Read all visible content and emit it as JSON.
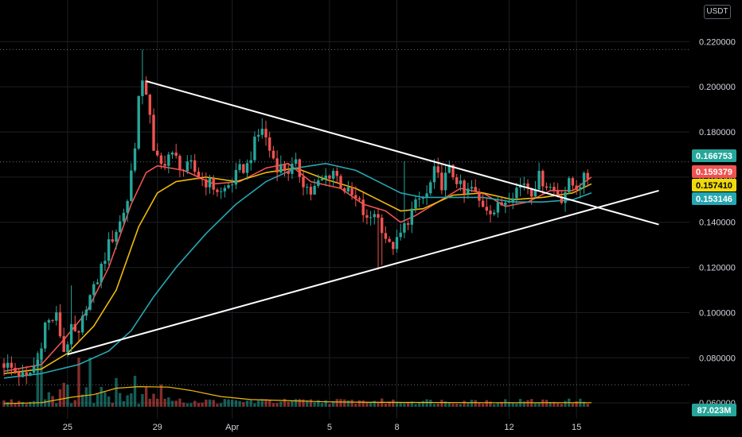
{
  "currency_badge": "USDT",
  "colors": {
    "background": "#000000",
    "up": "#26a69a",
    "down": "#ef5350",
    "ema_fast": "#ef5350",
    "ema_mid": "#f0b90b",
    "ema_slow": "#26a6b0",
    "volume_ma": "#f0b90b",
    "trendline": "#ffffff",
    "grid": "#1c1f26"
  },
  "price_tags": [
    {
      "label": "0.166753",
      "value": 0.166753,
      "bg": "#26a69a",
      "fg": "#ffffff"
    },
    {
      "label": "0.159379",
      "value": 0.159379,
      "bg": "#ef5350",
      "fg": "#ffffff"
    },
    {
      "label": "0.157410",
      "value": 0.15741,
      "bg": "#f0d90b",
      "fg": "#000000"
    },
    {
      "label": "0.153146",
      "value": 0.153146,
      "bg": "#26a6b0",
      "fg": "#ffffff"
    }
  ],
  "volume_tag": {
    "label": "87.023M",
    "bg": "#26a69a",
    "fg": "#ffffff"
  },
  "chart_data": {
    "type": "candlestick",
    "yaxis_ticks": [
      "0.220000",
      "0.200000",
      "0.180000",
      "0.160000",
      "0.140000",
      "0.120000",
      "0.100000",
      "0.080000",
      "0.060000"
    ],
    "yaxis_tick_values": [
      0.22,
      0.2,
      0.18,
      0.16,
      0.14,
      0.12,
      0.1,
      0.08,
      0.06
    ],
    "ylim": [
      0.053,
      0.2335
    ],
    "xaxis_labels": [
      {
        "label": "25",
        "bar": 17
      },
      {
        "label": "29",
        "bar": 41
      },
      {
        "label": "Apr",
        "bar": 61
      },
      {
        "label": "5",
        "bar": 87
      },
      {
        "label": "8",
        "bar": 105
      },
      {
        "label": "12",
        "bar": 135
      },
      {
        "label": "15",
        "bar": 153
      }
    ],
    "bar_count": 157,
    "dotted_levels": [
      0.2165,
      0.16675,
      0.068
    ],
    "series": [
      {
        "name": "EMA fast",
        "color": "#ef5350",
        "points": [
          [
            0,
            0.074
          ],
          [
            10,
            0.077
          ],
          [
            16,
            0.088
          ],
          [
            22,
            0.1
          ],
          [
            28,
            0.12
          ],
          [
            34,
            0.148
          ],
          [
            38,
            0.162
          ],
          [
            41,
            0.165
          ],
          [
            48,
            0.163
          ],
          [
            56,
            0.157
          ],
          [
            63,
            0.158
          ],
          [
            70,
            0.164
          ],
          [
            76,
            0.166
          ],
          [
            82,
            0.158
          ],
          [
            90,
            0.155
          ],
          [
            96,
            0.148
          ],
          [
            102,
            0.145
          ],
          [
            106,
            0.14
          ],
          [
            110,
            0.143
          ],
          [
            116,
            0.149
          ],
          [
            122,
            0.155
          ],
          [
            128,
            0.153
          ],
          [
            134,
            0.147
          ],
          [
            140,
            0.149
          ],
          [
            146,
            0.154
          ],
          [
            152,
            0.154
          ],
          [
            157,
            0.16
          ]
        ]
      },
      {
        "name": "EMA mid",
        "color": "#f0b90b",
        "points": [
          [
            0,
            0.073
          ],
          [
            10,
            0.075
          ],
          [
            17,
            0.082
          ],
          [
            24,
            0.094
          ],
          [
            30,
            0.11
          ],
          [
            36,
            0.138
          ],
          [
            41,
            0.153
          ],
          [
            46,
            0.158
          ],
          [
            54,
            0.16
          ],
          [
            62,
            0.158
          ],
          [
            70,
            0.162
          ],
          [
            78,
            0.164
          ],
          [
            86,
            0.159
          ],
          [
            94,
            0.155
          ],
          [
            100,
            0.15
          ],
          [
            106,
            0.145
          ],
          [
            112,
            0.146
          ],
          [
            120,
            0.152
          ],
          [
            128,
            0.153
          ],
          [
            136,
            0.15
          ],
          [
            144,
            0.151
          ],
          [
            152,
            0.153
          ],
          [
            157,
            0.157
          ]
        ]
      },
      {
        "name": "EMA slow",
        "color": "#26a6b0",
        "points": [
          [
            0,
            0.071
          ],
          [
            10,
            0.073
          ],
          [
            20,
            0.077
          ],
          [
            28,
            0.083
          ],
          [
            34,
            0.092
          ],
          [
            40,
            0.107
          ],
          [
            46,
            0.12
          ],
          [
            54,
            0.135
          ],
          [
            62,
            0.148
          ],
          [
            70,
            0.158
          ],
          [
            78,
            0.164
          ],
          [
            86,
            0.166
          ],
          [
            94,
            0.163
          ],
          [
            100,
            0.158
          ],
          [
            106,
            0.153
          ],
          [
            112,
            0.151
          ],
          [
            120,
            0.151
          ],
          [
            128,
            0.151
          ],
          [
            136,
            0.149
          ],
          [
            144,
            0.149
          ],
          [
            152,
            0.15
          ],
          [
            157,
            0.153
          ]
        ]
      },
      {
        "name": "Trendline upper",
        "color": "#ffffff",
        "points": [
          [
            38,
            0.2025
          ],
          [
            175,
            0.139
          ]
        ]
      },
      {
        "name": "Trendline lower",
        "color": "#ffffff",
        "points": [
          [
            17,
            0.0815
          ],
          [
            175,
            0.154
          ]
        ]
      }
    ],
    "volume_ma": [
      [
        0,
        0.0597
      ],
      [
        10,
        0.0601
      ],
      [
        18,
        0.0625
      ],
      [
        24,
        0.0637
      ],
      [
        30,
        0.0665
      ],
      [
        36,
        0.0672
      ],
      [
        44,
        0.067
      ],
      [
        50,
        0.0655
      ],
      [
        58,
        0.0628
      ],
      [
        66,
        0.0615
      ],
      [
        76,
        0.061
      ],
      [
        86,
        0.0605
      ],
      [
        96,
        0.0603
      ],
      [
        110,
        0.0602
      ],
      [
        130,
        0.0601
      ],
      [
        157,
        0.0601
      ]
    ],
    "anchors": [
      [
        0,
        0.0775
      ],
      [
        6,
        0.0705
      ],
      [
        9,
        0.079
      ],
      [
        11,
        0.095
      ],
      [
        14,
        0.098
      ],
      [
        16,
        0.083
      ],
      [
        18,
        0.092
      ],
      [
        20,
        0.089
      ],
      [
        22,
        0.104
      ],
      [
        24,
        0.11
      ],
      [
        26,
        0.12
      ],
      [
        28,
        0.13
      ],
      [
        31,
        0.14
      ],
      [
        33,
        0.15
      ],
      [
        35,
        0.175
      ],
      [
        36,
        0.195
      ],
      [
        37,
        0.2
      ],
      [
        38,
        0.198
      ],
      [
        39,
        0.189
      ],
      [
        40,
        0.17
      ],
      [
        42,
        0.165
      ],
      [
        44,
        0.17
      ],
      [
        46,
        0.168
      ],
      [
        48,
        0.163
      ],
      [
        50,
        0.165
      ],
      [
        52,
        0.16
      ],
      [
        55,
        0.157
      ],
      [
        58,
        0.153
      ],
      [
        61,
        0.158
      ],
      [
        63,
        0.163
      ],
      [
        65,
        0.165
      ],
      [
        67,
        0.175
      ],
      [
        69,
        0.182
      ],
      [
        71,
        0.172
      ],
      [
        73,
        0.165
      ],
      [
        76,
        0.163
      ],
      [
        78,
        0.165
      ],
      [
        80,
        0.158
      ],
      [
        82,
        0.153
      ],
      [
        84,
        0.157
      ],
      [
        86,
        0.16
      ],
      [
        88,
        0.163
      ],
      [
        90,
        0.157
      ],
      [
        92,
        0.153
      ],
      [
        95,
        0.148
      ],
      [
        97,
        0.14
      ],
      [
        99,
        0.145
      ],
      [
        101,
        0.138
      ],
      [
        103,
        0.129
      ],
      [
        105,
        0.131
      ],
      [
        107,
        0.138
      ],
      [
        109,
        0.145
      ],
      [
        111,
        0.15
      ],
      [
        113,
        0.152
      ],
      [
        115,
        0.162
      ],
      [
        117,
        0.157
      ],
      [
        119,
        0.163
      ],
      [
        121,
        0.159
      ],
      [
        123,
        0.152
      ],
      [
        125,
        0.155
      ],
      [
        127,
        0.149
      ],
      [
        129,
        0.147
      ],
      [
        131,
        0.145
      ],
      [
        133,
        0.148
      ],
      [
        135,
        0.152
      ],
      [
        137,
        0.155
      ],
      [
        139,
        0.158
      ],
      [
        141,
        0.154
      ],
      [
        143,
        0.16
      ],
      [
        145,
        0.157
      ],
      [
        147,
        0.154
      ],
      [
        149,
        0.151
      ],
      [
        151,
        0.157
      ],
      [
        153,
        0.156
      ],
      [
        155,
        0.159
      ],
      [
        156,
        0.16
      ],
      [
        157,
        0.1668
      ]
    ],
    "wick_spikes": [
      [
        37,
        0.2165
      ],
      [
        38,
        0.2
      ],
      [
        36,
        0.195
      ],
      [
        18,
        0.112
      ],
      [
        101,
        0.121
      ],
      [
        100,
        0.119
      ],
      [
        107,
        0.167
      ],
      [
        115,
        0.168
      ],
      [
        69,
        0.186
      ]
    ],
    "volume_spikes": [
      [
        9,
        0.082
      ],
      [
        10,
        0.079
      ],
      [
        20,
        0.08
      ],
      [
        23,
        0.08
      ],
      [
        30,
        0.071
      ],
      [
        35,
        0.072
      ],
      [
        38,
        0.067
      ]
    ]
  }
}
